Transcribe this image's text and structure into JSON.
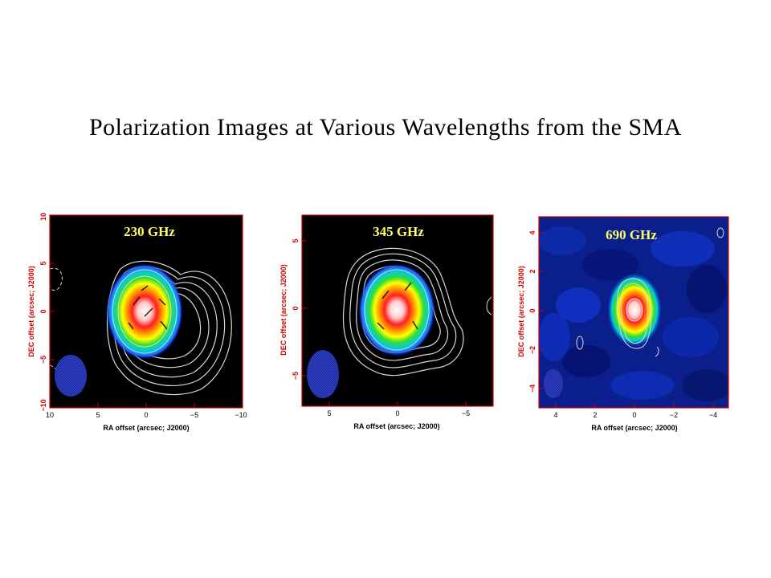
{
  "slide": {
    "title": "Polarization Images at Various Wavelengths from the SMA"
  },
  "panels": [
    {
      "frequency_label": "230 GHz",
      "xlabel": "RA offset (arcsec; J2000)",
      "ylabel": "DEC offset (arcsec; J2000)",
      "xticks": [
        "10",
        "5",
        "0",
        "−5",
        "−10"
      ],
      "yticks": [
        "10",
        "5",
        "0",
        "−5",
        "−10"
      ],
      "background": "#000000"
    },
    {
      "frequency_label": "345 GHz",
      "xlabel": "RA offset (arcsec; J2000)",
      "ylabel": "DEC offset (arcsec; J2000)",
      "xticks": [
        "5",
        "0",
        "−5"
      ],
      "yticks": [
        "5",
        "0",
        "−5"
      ],
      "background": "#000000"
    },
    {
      "frequency_label": "690 GHz",
      "xlabel": "RA offset (arcsec; J2000)",
      "ylabel": "DEC offset (arcsec; J2000)",
      "xticks": [
        "4",
        "2",
        "0",
        "−2",
        "−4"
      ],
      "yticks": [
        "4",
        "2",
        "0",
        "−2",
        "−4"
      ],
      "background": "#0a1f8c"
    }
  ],
  "colors": {
    "frame": "#cc0000",
    "contour": "#d8d8d8",
    "freq_label": "#ffff66",
    "beam": "#2233aa"
  }
}
